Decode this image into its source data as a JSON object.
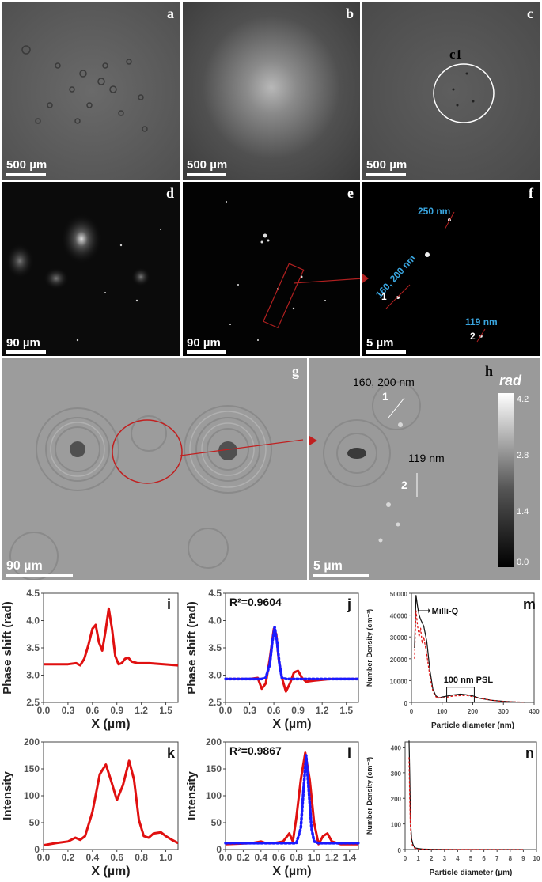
{
  "panels": {
    "a": {
      "label": "a",
      "scale": "500 µm"
    },
    "b": {
      "label": "b",
      "scale": "500 µm"
    },
    "c": {
      "label": "c",
      "scale": "500 µm",
      "circle_label": "c1"
    },
    "d": {
      "label": "d",
      "scale": "90 µm"
    },
    "e": {
      "label": "e",
      "scale": "90 µm"
    },
    "f": {
      "label": "f",
      "scale": "5 µm",
      "ann_250": "250 nm",
      "ann_160": "160, 200 nm",
      "ann_119": "119 nm",
      "marker1": "1",
      "marker2": "2"
    },
    "g": {
      "label": "g",
      "scale": "90 µm"
    },
    "h": {
      "label": "h",
      "scale": "5 µm",
      "ann_160": "160, 200 nm",
      "ann_119": "119 nm",
      "marker1": "1",
      "marker2": "2",
      "colorbar": {
        "unit": "rad",
        "ticks": [
          "4.2",
          "2.8",
          "1.4",
          "0.0"
        ]
      }
    }
  },
  "chart_data": [
    {
      "id": "i",
      "type": "line",
      "label": "i",
      "xlabel": "X (µm)",
      "ylabel": "Phase shift (rad)",
      "xlim": [
        0,
        1.65
      ],
      "ylim": [
        2.5,
        4.5
      ],
      "xticks": [
        "0.0",
        "0.3",
        "0.6",
        "0.9",
        "1.2",
        "1.5"
      ],
      "yticks": [
        "2.5",
        "3.0",
        "3.5",
        "4.0",
        "4.5"
      ],
      "series": [
        {
          "color": "#e01010",
          "x": [
            0,
            0.3,
            0.4,
            0.45,
            0.5,
            0.55,
            0.6,
            0.64,
            0.68,
            0.72,
            0.76,
            0.8,
            0.84,
            0.88,
            0.92,
            0.96,
            1.0,
            1.04,
            1.08,
            1.15,
            1.3,
            1.65
          ],
          "y": [
            3.2,
            3.2,
            3.22,
            3.18,
            3.3,
            3.55,
            3.85,
            3.92,
            3.6,
            3.45,
            3.8,
            4.22,
            3.85,
            3.35,
            3.2,
            3.22,
            3.3,
            3.32,
            3.25,
            3.22,
            3.22,
            3.18
          ]
        }
      ]
    },
    {
      "id": "j",
      "type": "line",
      "label": "j",
      "annotation": "R²=0.9604",
      "xlabel": "X (µm)",
      "ylabel": "Phase shift (rad)",
      "xlim": [
        0,
        1.65
      ],
      "ylim": [
        2.5,
        4.5
      ],
      "xticks": [
        "0.0",
        "0.3",
        "0.6",
        "0.9",
        "1.2",
        "1.5"
      ],
      "yticks": [
        "2.5",
        "3.0",
        "3.5",
        "4.0",
        "4.5"
      ],
      "series": [
        {
          "color": "#e01010",
          "x": [
            0,
            0.3,
            0.4,
            0.45,
            0.5,
            0.55,
            0.6,
            0.63,
            0.66,
            0.7,
            0.75,
            0.8,
            0.85,
            0.9,
            0.95,
            1.0,
            1.1,
            1.3,
            1.65
          ],
          "y": [
            2.93,
            2.93,
            2.95,
            2.75,
            2.85,
            3.3,
            3.85,
            3.75,
            3.3,
            2.95,
            2.7,
            2.85,
            3.05,
            3.08,
            2.95,
            2.88,
            2.9,
            2.93,
            2.93
          ]
        },
        {
          "color": "#1a1aff",
          "dotted": true,
          "x": [
            0,
            0.45,
            0.5,
            0.55,
            0.58,
            0.61,
            0.64,
            0.67,
            0.7,
            0.75,
            1.65
          ],
          "y": [
            2.93,
            2.93,
            2.95,
            3.2,
            3.6,
            3.88,
            3.6,
            3.2,
            2.95,
            2.93,
            2.93
          ]
        }
      ]
    },
    {
      "id": "k",
      "type": "line",
      "label": "k",
      "xlabel": "X (µm)",
      "ylabel": "Intensity",
      "xlim": [
        0,
        1.1
      ],
      "ylim": [
        0,
        200
      ],
      "xticks": [
        "0.0",
        "0.2",
        "0.4",
        "0.6",
        "0.8",
        "1.0"
      ],
      "yticks": [
        "0",
        "50",
        "100",
        "150",
        "200"
      ],
      "series": [
        {
          "color": "#e01010",
          "x": [
            0,
            0.1,
            0.2,
            0.26,
            0.3,
            0.34,
            0.4,
            0.46,
            0.51,
            0.55,
            0.6,
            0.65,
            0.7,
            0.74,
            0.78,
            0.82,
            0.86,
            0.9,
            0.96,
            1.0,
            1.05,
            1.1
          ],
          "y": [
            8,
            12,
            15,
            22,
            18,
            25,
            70,
            140,
            158,
            130,
            92,
            120,
            165,
            130,
            55,
            25,
            22,
            30,
            32,
            25,
            18,
            12
          ]
        }
      ]
    },
    {
      "id": "l",
      "type": "line",
      "label": "l",
      "annotation": "R²=0.9867",
      "xlabel": "X (µm)",
      "ylabel": "Intensity",
      "xlim": [
        0,
        1.5
      ],
      "ylim": [
        0,
        200
      ],
      "xticks": [
        "0.0",
        "0.2",
        "0.4",
        "0.6",
        "0.8",
        "1.0",
        "1.2",
        "1.4"
      ],
      "yticks": [
        "0",
        "50",
        "100",
        "150",
        "200"
      ],
      "series": [
        {
          "color": "#e01010",
          "x": [
            0,
            0.3,
            0.4,
            0.45,
            0.55,
            0.65,
            0.72,
            0.76,
            0.8,
            0.85,
            0.9,
            0.95,
            1.0,
            1.05,
            1.1,
            1.15,
            1.2,
            1.3,
            1.5
          ],
          "y": [
            10,
            12,
            15,
            12,
            12,
            15,
            30,
            15,
            60,
            130,
            180,
            130,
            50,
            10,
            25,
            30,
            15,
            10,
            10
          ]
        },
        {
          "color": "#1a1aff",
          "dotted": true,
          "x": [
            0,
            0.8,
            0.85,
            0.88,
            0.91,
            0.94,
            0.97,
            1.0,
            1.05,
            1.5
          ],
          "y": [
            12,
            12,
            40,
            110,
            175,
            110,
            40,
            15,
            12,
            12
          ]
        }
      ]
    },
    {
      "id": "m",
      "type": "line",
      "label": "m",
      "xlabel": "Particle diameter (nm)",
      "ylabel": "Number Density (cm⁻³)",
      "xlim": [
        0,
        400
      ],
      "ylim": [
        0,
        50000
      ],
      "xticks": [
        "0",
        "100",
        "200",
        "300",
        "400"
      ],
      "yticks": [
        "0",
        "10000",
        "20000",
        "30000",
        "40000",
        "50000"
      ],
      "annotations": [
        "Milli-Q",
        "100 nm PSL"
      ],
      "series": [
        {
          "color": "#111111",
          "x": [
            10,
            15,
            20,
            25,
            30,
            40,
            50,
            60,
            70,
            80,
            90,
            100,
            120,
            140,
            160,
            180,
            200,
            220,
            240,
            260,
            300,
            340,
            370
          ],
          "y": [
            25000,
            49000,
            44000,
            40000,
            38000,
            35000,
            28000,
            15000,
            6000,
            3000,
            2000,
            2500,
            3000,
            3500,
            3800,
            3500,
            3000,
            2000,
            1500,
            1000,
            500,
            200,
            100
          ]
        },
        {
          "color": "#e01010",
          "dashed": true,
          "x": [
            10,
            15,
            20,
            25,
            30,
            35,
            40,
            50,
            60,
            70,
            80,
            100,
            140,
            180,
            220,
            260,
            300,
            370
          ],
          "y": [
            20000,
            42000,
            35000,
            30000,
            34000,
            27000,
            30000,
            22000,
            12000,
            5000,
            2500,
            2000,
            3000,
            3200,
            2000,
            1000,
            400,
            100
          ]
        }
      ]
    },
    {
      "id": "n",
      "type": "line",
      "label": "n",
      "xlabel": "Particle diameter (µm)",
      "ylabel": "Number Density (cm⁻³)",
      "xlim": [
        0,
        10
      ],
      "ylim": [
        0,
        420
      ],
      "xticks": [
        "0",
        "1",
        "2",
        "3",
        "4",
        "5",
        "6",
        "7",
        "8",
        "9",
        "10"
      ],
      "yticks": [
        "0",
        "100",
        "200",
        "300",
        "400"
      ],
      "series": [
        {
          "color": "#111111",
          "x": [
            0.3,
            0.35,
            0.4,
            0.45,
            0.5,
            0.6,
            0.7,
            0.8,
            1.0,
            1.3,
            2,
            4,
            6,
            8,
            9
          ],
          "y": [
            425,
            300,
            150,
            80,
            40,
            20,
            10,
            6,
            4,
            2,
            1,
            0,
            0,
            0,
            0
          ]
        },
        {
          "color": "#e01010",
          "dashed": true,
          "x": [
            0.3,
            0.35,
            0.4,
            0.5,
            0.6,
            0.8,
            1.0,
            2,
            5,
            9
          ],
          "y": [
            360,
            200,
            90,
            25,
            10,
            4,
            2,
            0,
            0,
            0
          ]
        }
      ]
    }
  ]
}
